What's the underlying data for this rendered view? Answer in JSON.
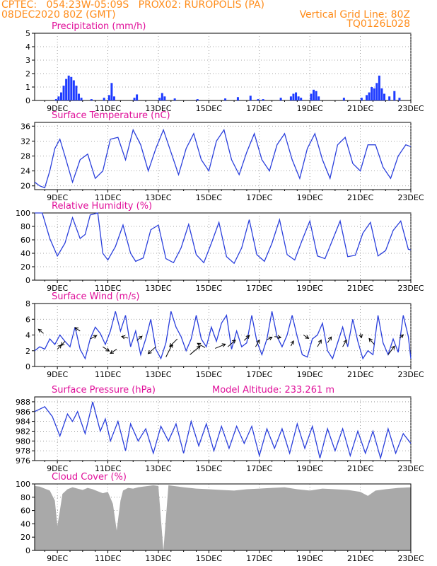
{
  "header": {
    "left1": "CPTEC:   054:23W-05:09S   PROX02: RUROPOLIS (PA)",
    "left2": "08DEC2020 80Z (GMT)",
    "right2": "Vertical Grid Line: 80Z",
    "right3": "TQ0126L028"
  },
  "colors": {
    "header": "#ff8c1a",
    "title": "#e0109a",
    "line": "#2a3fdc",
    "cloud": "#a9a9a9"
  },
  "x_ticks": [
    "9DEC",
    "11DEC",
    "13DEC",
    "15DEC",
    "17DEC",
    "19DEC",
    "21DEC",
    "23DEC"
  ],
  "chart_data": [
    {
      "type": "bar",
      "title": "Precipitation (mm/h)",
      "ylim": [
        0,
        5
      ],
      "yticks": [
        0,
        1,
        2,
        3,
        4,
        5
      ],
      "x_range": [
        8.1,
        23.0
      ],
      "bars": [
        [
          8.95,
          0.1
        ],
        [
          9.05,
          0.3
        ],
        [
          9.15,
          0.6
        ],
        [
          9.25,
          1.1
        ],
        [
          9.35,
          1.6
        ],
        [
          9.45,
          1.85
        ],
        [
          9.55,
          1.75
        ],
        [
          9.65,
          1.5
        ],
        [
          9.75,
          1.1
        ],
        [
          9.85,
          0.5
        ],
        [
          9.95,
          0.2
        ],
        [
          10.35,
          0.1
        ],
        [
          10.85,
          0.2
        ],
        [
          11.05,
          0.4
        ],
        [
          11.15,
          1.3
        ],
        [
          11.25,
          0.3
        ],
        [
          12.05,
          0.2
        ],
        [
          12.15,
          0.45
        ],
        [
          13.05,
          0.2
        ],
        [
          13.15,
          0.55
        ],
        [
          13.25,
          0.3
        ],
        [
          13.65,
          0.15
        ],
        [
          14.55,
          0.1
        ],
        [
          15.65,
          0.15
        ],
        [
          16.15,
          0.25
        ],
        [
          16.65,
          0.35
        ],
        [
          16.95,
          0.1
        ],
        [
          17.15,
          0.1
        ],
        [
          17.85,
          0.2
        ],
        [
          18.25,
          0.3
        ],
        [
          18.35,
          0.5
        ],
        [
          18.45,
          0.6
        ],
        [
          18.55,
          0.3
        ],
        [
          18.65,
          0.2
        ],
        [
          19.05,
          0.5
        ],
        [
          19.15,
          0.8
        ],
        [
          19.25,
          0.7
        ],
        [
          19.35,
          0.3
        ],
        [
          20.35,
          0.2
        ],
        [
          21.05,
          0.2
        ],
        [
          21.25,
          0.4
        ],
        [
          21.35,
          0.6
        ],
        [
          21.45,
          1.0
        ],
        [
          21.55,
          0.9
        ],
        [
          21.65,
          1.3
        ],
        [
          21.75,
          1.85
        ],
        [
          21.85,
          0.9
        ],
        [
          21.95,
          0.5
        ],
        [
          22.15,
          0.3
        ],
        [
          22.35,
          0.7
        ],
        [
          22.55,
          0.2
        ]
      ]
    },
    {
      "type": "line",
      "title": "Surface Temperature (nC)",
      "ylim": [
        19,
        37
      ],
      "yticks": [
        20,
        24,
        28,
        32,
        36
      ],
      "x_range": [
        8.1,
        23.0
      ],
      "x": [
        8.1,
        8.3,
        8.5,
        8.7,
        8.9,
        9.1,
        9.3,
        9.6,
        9.9,
        10.2,
        10.5,
        10.8,
        11.1,
        11.4,
        11.7,
        12.0,
        12.3,
        12.6,
        12.9,
        13.2,
        13.5,
        13.8,
        14.1,
        14.4,
        14.7,
        15.0,
        15.3,
        15.6,
        15.9,
        16.2,
        16.5,
        16.8,
        17.1,
        17.4,
        17.7,
        18.0,
        18.3,
        18.6,
        18.9,
        19.2,
        19.5,
        19.8,
        20.1,
        20.4,
        20.7,
        21.0,
        21.3,
        21.6,
        21.9,
        22.2,
        22.5,
        22.8,
        23.0
      ],
      "y": [
        21,
        20,
        19.5,
        24,
        30,
        32.5,
        28,
        21,
        27,
        28.5,
        22,
        24,
        32.5,
        33,
        27,
        35,
        31,
        24,
        30,
        35,
        29,
        23,
        30,
        34,
        27,
        24,
        32,
        35,
        27,
        23,
        29,
        34,
        27,
        24,
        31,
        34,
        27,
        22,
        30,
        34,
        27,
        22,
        31,
        33,
        26,
        24,
        31,
        31,
        25,
        22,
        28,
        31,
        30.5
      ]
    },
    {
      "type": "line",
      "title": "Relative Humidity (%)",
      "ylim": [
        0,
        100
      ],
      "yticks": [
        0,
        20,
        40,
        60,
        80,
        100
      ],
      "x_range": [
        8.1,
        23.0
      ],
      "x": [
        8.1,
        8.4,
        8.7,
        9.0,
        9.3,
        9.6,
        9.9,
        10.1,
        10.3,
        10.6,
        10.8,
        11.0,
        11.3,
        11.6,
        11.9,
        12.1,
        12.4,
        12.7,
        13.0,
        13.3,
        13.6,
        13.9,
        14.2,
        14.5,
        14.8,
        15.1,
        15.4,
        15.7,
        16.0,
        16.3,
        16.6,
        16.9,
        17.2,
        17.5,
        17.8,
        18.1,
        18.4,
        18.7,
        19.0,
        19.3,
        19.6,
        19.9,
        20.2,
        20.5,
        20.8,
        21.1,
        21.4,
        21.7,
        22.0,
        22.3,
        22.6,
        22.9,
        23.0
      ],
      "y": [
        100,
        100,
        62,
        36,
        55,
        93,
        62,
        68,
        97,
        100,
        40,
        30,
        50,
        82,
        40,
        28,
        33,
        75,
        82,
        32,
        26,
        48,
        83,
        38,
        26,
        55,
        86,
        35,
        25,
        48,
        90,
        38,
        28,
        55,
        90,
        38,
        30,
        60,
        88,
        36,
        32,
        60,
        88,
        35,
        37,
        70,
        86,
        36,
        44,
        74,
        88,
        46,
        45
      ]
    },
    {
      "type": "line",
      "title": "Surface Wind (m/s)",
      "ylim": [
        0,
        8
      ],
      "yticks": [
        0,
        2,
        4,
        6,
        8
      ],
      "x_range": [
        8.1,
        23.0
      ],
      "x": [
        8.1,
        8.3,
        8.5,
        8.7,
        8.9,
        9.1,
        9.3,
        9.5,
        9.7,
        9.9,
        10.1,
        10.3,
        10.5,
        10.7,
        10.9,
        11.1,
        11.3,
        11.5,
        11.7,
        11.9,
        12.1,
        12.3,
        12.5,
        12.7,
        12.9,
        13.1,
        13.3,
        13.5,
        13.7,
        13.9,
        14.1,
        14.3,
        14.5,
        14.7,
        14.9,
        15.1,
        15.3,
        15.5,
        15.7,
        15.9,
        16.1,
        16.3,
        16.5,
        16.7,
        16.9,
        17.1,
        17.3,
        17.5,
        17.7,
        17.9,
        18.1,
        18.3,
        18.5,
        18.7,
        18.9,
        19.1,
        19.3,
        19.5,
        19.7,
        19.9,
        20.1,
        20.3,
        20.5,
        20.7,
        20.9,
        21.1,
        21.3,
        21.5,
        21.7,
        21.9,
        22.1,
        22.3,
        22.5,
        22.7,
        22.9,
        23.0
      ],
      "y": [
        2.0,
        2.5,
        2.2,
        3.5,
        2.8,
        4.0,
        3.2,
        2.5,
        5.0,
        2.2,
        1.0,
        3.5,
        5.0,
        4.2,
        2.8,
        4.5,
        7.0,
        4.5,
        6.5,
        2.5,
        4.5,
        1.5,
        3.5,
        6.0,
        2.2,
        1.0,
        3.0,
        7.0,
        5.0,
        3.8,
        2.0,
        3.5,
        6.5,
        3.5,
        2.5,
        5.0,
        3.2,
        5.5,
        6.5,
        2.2,
        4.5,
        2.5,
        3.0,
        6.5,
        3.2,
        1.5,
        3.5,
        7.0,
        3.8,
        2.5,
        4.0,
        6.5,
        3.8,
        1.5,
        1.2,
        3.5,
        4.0,
        5.5,
        2.0,
        1.0,
        3.0,
        5.0,
        2.5,
        6.0,
        3.2,
        1.0,
        2.0,
        1.5,
        6.5,
        3.0,
        1.5,
        3.5,
        1.8,
        6.5,
        3.8,
        1.0
      ],
      "arrows": [
        [
          8.45,
          4.2,
          -0.4,
          0.5
        ],
        [
          9.0,
          2.2,
          0.3,
          0.5
        ],
        [
          9.3,
          3.2,
          -0.3,
          -0.5
        ],
        [
          9.9,
          4.5,
          -0.4,
          0.4
        ],
        [
          10.3,
          3.5,
          0.5,
          0.4
        ],
        [
          10.8,
          2.5,
          0.5,
          -0.5
        ],
        [
          11.35,
          2.2,
          -0.5,
          -0.5
        ],
        [
          11.8,
          3.6,
          -0.5,
          0.2
        ],
        [
          12.15,
          3.3,
          0.4,
          0.5
        ],
        [
          12.9,
          2.5,
          -0.6,
          -0.8
        ],
        [
          13.3,
          1.2,
          0.5,
          1.5
        ],
        [
          13.75,
          3.5,
          -0.6,
          -0.9
        ],
        [
          14.25,
          1.5,
          0.8,
          1.0
        ],
        [
          14.85,
          2.4,
          -0.6,
          0.5
        ],
        [
          15.25,
          2.3,
          0.8,
          0.5
        ],
        [
          15.75,
          2.5,
          0.6,
          0.8
        ],
        [
          16.4,
          3.3,
          0.4,
          0.6
        ],
        [
          16.85,
          2.5,
          0.3,
          0.8
        ],
        [
          17.3,
          3.4,
          0.4,
          0.3
        ],
        [
          17.6,
          3.8,
          0.5,
          -0.1
        ],
        [
          18.25,
          2.6,
          0.2,
          0.6
        ],
        [
          18.75,
          4.0,
          0.4,
          -0.4
        ],
        [
          19.3,
          2.5,
          0.3,
          0.8
        ],
        [
          19.7,
          3.0,
          0.3,
          0.7
        ],
        [
          20.3,
          2.5,
          0.3,
          0.8
        ],
        [
          21.0,
          4.2,
          0.1,
          -0.5
        ],
        [
          21.55,
          2.8,
          -0.4,
          0.7
        ],
        [
          22.1,
          1.5,
          0.5,
          1.0
        ],
        [
          22.55,
          3.6,
          0.3,
          0.4
        ]
      ]
    },
    {
      "type": "line",
      "title": "Surface Pressure (hPa)",
      "annotation": "Model Altitude: 233.261  m",
      "ylim": [
        976,
        989
      ],
      "yticks": [
        976,
        978,
        980,
        982,
        984,
        986,
        988
      ],
      "x_range": [
        8.1,
        23.0
      ],
      "x": [
        8.1,
        8.3,
        8.5,
        8.8,
        9.1,
        9.4,
        9.6,
        9.8,
        10.1,
        10.4,
        10.7,
        10.9,
        11.1,
        11.4,
        11.7,
        11.9,
        12.2,
        12.5,
        12.8,
        13.1,
        13.4,
        13.7,
        14.0,
        14.3,
        14.6,
        14.9,
        15.2,
        15.5,
        15.8,
        16.1,
        16.4,
        16.7,
        17.0,
        17.3,
        17.6,
        17.9,
        18.2,
        18.5,
        18.8,
        19.1,
        19.4,
        19.7,
        20.0,
        20.3,
        20.6,
        20.9,
        21.2,
        21.5,
        21.8,
        22.1,
        22.4,
        22.7,
        23.0
      ],
      "y": [
        986,
        986.5,
        987,
        985,
        981,
        985.5,
        984,
        986,
        981.5,
        988,
        982,
        984.5,
        980,
        984,
        978,
        983.5,
        980,
        982.5,
        977.5,
        983,
        980,
        983.5,
        977.5,
        984,
        979,
        983.5,
        978,
        983,
        978.5,
        983,
        979.5,
        983,
        977,
        982.5,
        978.5,
        982.5,
        977.5,
        983.5,
        978.5,
        983,
        976.5,
        982.5,
        978,
        982.5,
        977,
        982,
        977.5,
        982,
        976.5,
        982.5,
        977.5,
        981.5,
        979.5
      ]
    },
    {
      "type": "bar",
      "title": "Cloud Cover (%)",
      "ylim": [
        0,
        100
      ],
      "yticks": [
        0,
        20,
        40,
        60,
        80,
        100
      ],
      "x_range": [
        8.1,
        23.0
      ],
      "x": [
        8.1,
        8.3,
        8.5,
        8.7,
        8.9,
        9.0,
        9.1,
        9.2,
        9.4,
        9.6,
        9.8,
        10.0,
        10.2,
        10.4,
        10.6,
        10.8,
        11.0,
        11.2,
        11.35,
        11.5,
        11.6,
        11.8,
        12.0,
        12.2,
        12.4,
        12.6,
        12.8,
        13.0,
        13.2,
        13.4,
        13.6,
        13.8,
        14.0,
        14.5,
        15.0,
        15.5,
        16.0,
        16.5,
        17.0,
        17.5,
        18.0,
        18.5,
        19.0,
        19.5,
        20.0,
        20.5,
        21.0,
        21.3,
        21.6,
        22.0,
        22.5,
        23.0
      ],
      "y": [
        97,
        96,
        93,
        90,
        75,
        37,
        60,
        85,
        92,
        95,
        93,
        91,
        94,
        92,
        89,
        86,
        88,
        70,
        30,
        75,
        90,
        94,
        93,
        95,
        96,
        97,
        98,
        97,
        0,
        98,
        97,
        96,
        95,
        93,
        92,
        91,
        90,
        92,
        93,
        94,
        95,
        92,
        90,
        93,
        92,
        91,
        88,
        82,
        90,
        92,
        94,
        95
      ]
    }
  ]
}
